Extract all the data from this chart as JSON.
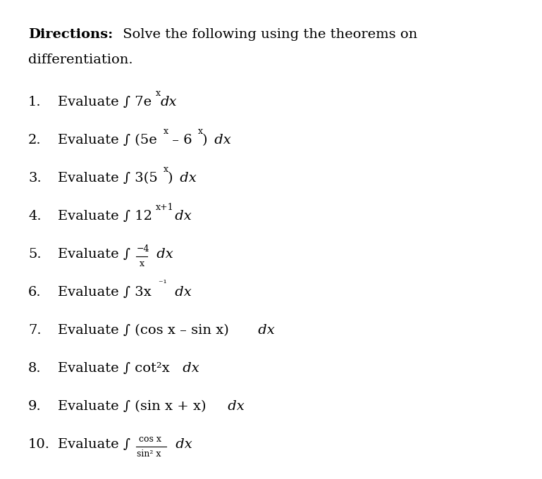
{
  "background_color": "#ffffff",
  "figsize": [
    7.69,
    6.8
  ],
  "dpi": 100,
  "items": [
    {
      "num": "1.",
      "upright": "Evaluate ∫ 7e",
      "super1": "x",
      "mid": "",
      "italic_end": "dx",
      "type": "super_attached"
    },
    {
      "num": "2.",
      "upright": "Evaluate ∫ (5e",
      "super1": "x",
      "mid": " – 6",
      "super2": "x",
      "end_upright": ")",
      "italic_end": " dx",
      "type": "double_super"
    },
    {
      "num": "3.",
      "upright": "Evaluate ∫ 3(5",
      "super1": "x",
      "end_upright": ")",
      "italic_end": " dx",
      "type": "single_super"
    },
    {
      "num": "4.",
      "upright": "Evaluate ∫ 12",
      "super1": "x+1",
      "italic_end": " dx",
      "type": "single_super_end"
    },
    {
      "num": "5.",
      "upright": "Evaluate ∫",
      "frac_num": "−4",
      "frac_den": "x",
      "italic_end": " dx",
      "type": "fraction"
    },
    {
      "num": "6.",
      "upright": "Evaluate ∫ 3x",
      "super1": " ⁻¹",
      "italic_end": " dx",
      "type": "single_super_end"
    },
    {
      "num": "7.",
      "upright": "Evaluate ∫ (cos x – sin x)",
      "italic_end": " dx",
      "type": "plain"
    },
    {
      "num": "8.",
      "upright": "Evaluate ∫ cot²x",
      "italic_end": " dx",
      "type": "plain"
    },
    {
      "num": "9.",
      "upright": "Evaluate ∫ (sin x + x)",
      "italic_end": " dx",
      "type": "plain"
    },
    {
      "num": "10.",
      "upright": "Evaluate ∫",
      "frac_num": "cos x",
      "frac_den": "sin² x",
      "italic_end": " dx",
      "type": "fraction"
    }
  ],
  "text_color": "#000000",
  "font_size": 14,
  "font_size_small": 9,
  "font_size_super": 9
}
